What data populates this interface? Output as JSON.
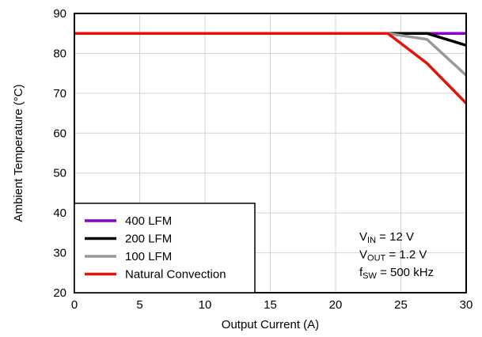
{
  "chart_data": {
    "type": "line",
    "xlabel": "Output Current (A)",
    "ylabel": "Ambient Temperature (°C)",
    "xlim": [
      0,
      30
    ],
    "ylim": [
      20,
      90
    ],
    "xticks": [
      0,
      5,
      10,
      15,
      20,
      25,
      30
    ],
    "yticks": [
      20,
      30,
      40,
      50,
      60,
      70,
      80,
      90
    ],
    "grid": true,
    "legend_position": "bottom-left",
    "series": [
      {
        "name": "400 LFM",
        "color": "#8b00c8",
        "x": [
          0,
          24,
          30
        ],
        "y": [
          85,
          85,
          85
        ]
      },
      {
        "name": "200 LFM",
        "color": "#000000",
        "x": [
          0,
          24,
          27,
          30
        ],
        "y": [
          85,
          85,
          85,
          82
        ]
      },
      {
        "name": "100 LFM",
        "color": "#999999",
        "x": [
          0,
          24,
          27,
          30
        ],
        "y": [
          85,
          85,
          83.5,
          74.5
        ]
      },
      {
        "name": "Natural Convection",
        "color": "#e3120b",
        "x": [
          0,
          24,
          27,
          30
        ],
        "y": [
          85,
          85,
          77.5,
          67.5
        ]
      }
    ],
    "annotation": {
      "lines": [
        {
          "base": "V",
          "sub": "IN",
          "rest": " = 12 V"
        },
        {
          "base": "V",
          "sub": "OUT",
          "rest": " = 1.2 V"
        },
        {
          "base": "f",
          "sub": "SW",
          "rest": " = 500 kHz"
        }
      ]
    }
  }
}
